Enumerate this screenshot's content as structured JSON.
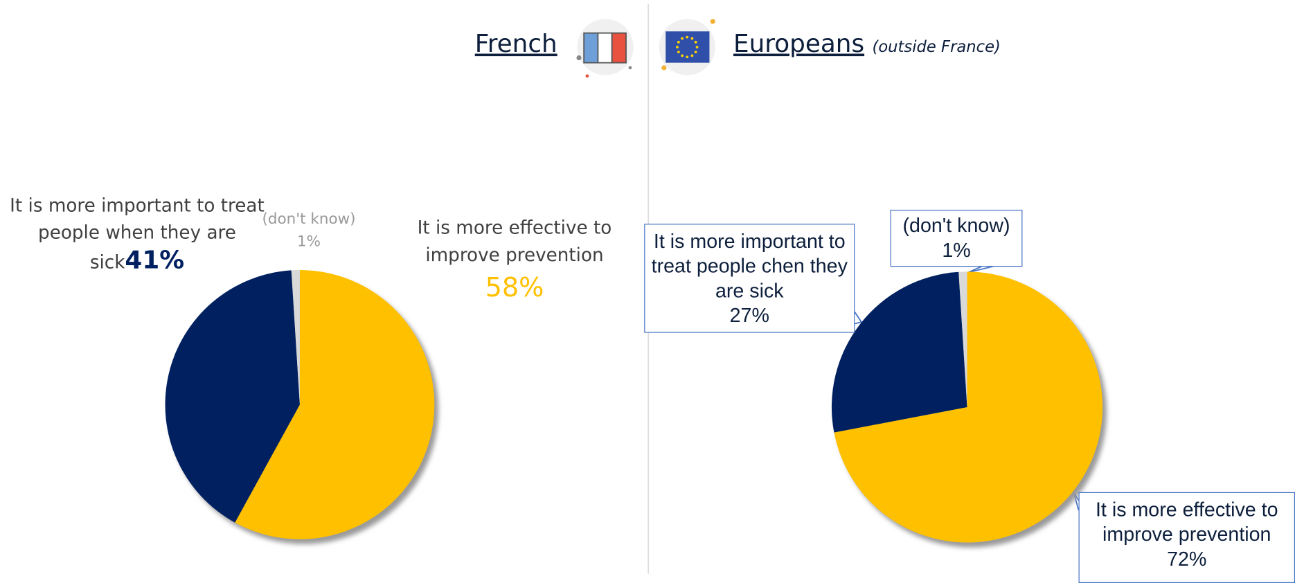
{
  "chart_data": [
    {
      "type": "pie",
      "title": "French",
      "categories": [
        "It is more effective to improve prevention",
        "It is more important to treat people when they are sick",
        "(don't know)"
      ],
      "values": [
        58,
        41,
        1
      ],
      "value_labels": [
        "58%",
        "41%",
        "1%"
      ],
      "colors": [
        "#FFC000",
        "#002060",
        "#D9D9D9"
      ]
    },
    {
      "type": "pie",
      "title": "Europeans",
      "subtitle": "(outside France)",
      "categories": [
        "It is more effective to improve prevention",
        "It is more important to treat people chen they are sick",
        "(don't know)"
      ],
      "values": [
        72,
        27,
        1
      ],
      "value_labels": [
        "72%",
        "27%",
        "1%"
      ],
      "colors": [
        "#FFC000",
        "#002060",
        "#D9D9D9"
      ]
    }
  ]
}
